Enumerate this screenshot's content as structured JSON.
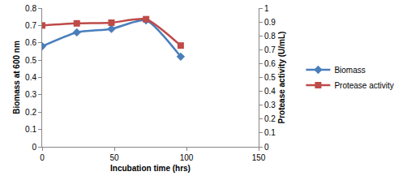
{
  "chart_data": {
    "type": "line",
    "xlabel": "Incubation time (hrs)",
    "ylabel": "Biomass at 600 nm",
    "y2label": "Protease activity (U/mL)",
    "x": [
      0,
      24,
      48,
      72,
      96
    ],
    "series": [
      {
        "name": "Biomass",
        "color": "#4a7ebb",
        "marker": "diamond",
        "line_style": "solid",
        "axis": "y",
        "values": [
          0.58,
          0.66,
          0.68,
          0.73,
          0.52
        ]
      },
      {
        "name": "Protease activity",
        "color": "#be4b48",
        "marker": "square",
        "line_style": "solid",
        "axis": "y2",
        "values": [
          0.875,
          0.89,
          0.895,
          0.92,
          0.73
        ]
      }
    ],
    "xlim": [
      0,
      150
    ],
    "xticks": [
      0,
      50,
      100,
      150
    ],
    "ylim": [
      0,
      0.8
    ],
    "yticks": [
      0,
      0.1,
      0.2,
      0.3,
      0.4,
      0.5,
      0.6,
      0.7,
      0.8
    ],
    "y2lim": [
      0,
      1
    ],
    "y2ticks": [
      0,
      0.1,
      0.2,
      0.3,
      0.4,
      0.5,
      0.6,
      0.7,
      0.8,
      0.9,
      1
    ],
    "grid": false,
    "legend": "right"
  }
}
